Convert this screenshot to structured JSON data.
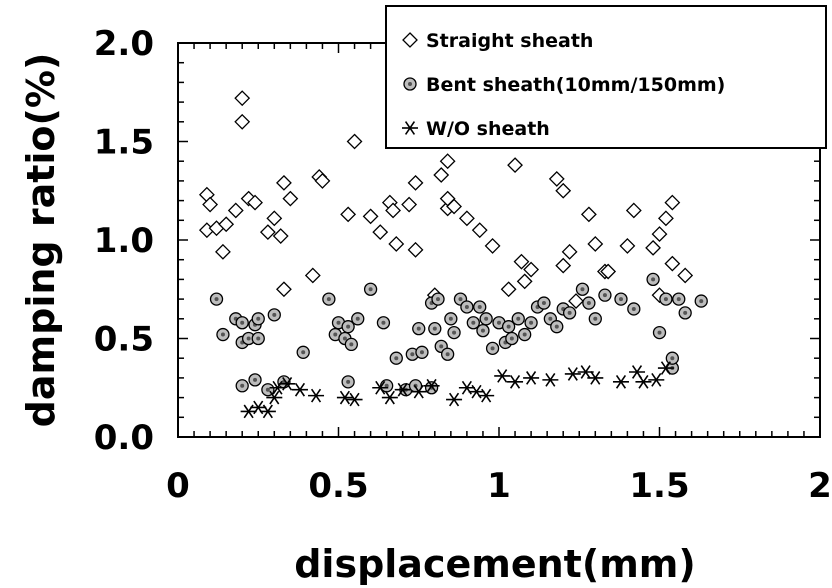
{
  "chart_data": {
    "type": "scatter",
    "xlabel": "displacement(mm)",
    "ylabel": "damping ratio(%)",
    "xlim": [
      0,
      2
    ],
    "ylim": [
      0,
      2
    ],
    "xticks": [
      "0",
      "0.5",
      "1",
      "1.5",
      "2"
    ],
    "yticks": [
      "0.0",
      "0.5",
      "1.0",
      "1.5",
      "2.0"
    ],
    "grid": false,
    "legend_position": "top-right",
    "series": [
      {
        "name": "Straight sheath",
        "marker": "diamond",
        "color": "#000000",
        "points": [
          [
            0.09,
            1.23
          ],
          [
            0.1,
            1.18
          ],
          [
            0.09,
            1.05
          ],
          [
            0.12,
            1.06
          ],
          [
            0.15,
            1.08
          ],
          [
            0.18,
            1.15
          ],
          [
            0.14,
            0.94
          ],
          [
            0.2,
            1.72
          ],
          [
            0.2,
            1.6
          ],
          [
            0.22,
            1.21
          ],
          [
            0.24,
            1.19
          ],
          [
            0.28,
            1.04
          ],
          [
            0.3,
            1.11
          ],
          [
            0.32,
            1.02
          ],
          [
            0.33,
            1.29
          ],
          [
            0.35,
            1.21
          ],
          [
            0.33,
            0.75
          ],
          [
            0.42,
            0.82
          ],
          [
            0.44,
            1.32
          ],
          [
            0.45,
            1.3
          ],
          [
            0.53,
            1.13
          ],
          [
            0.55,
            1.5
          ],
          [
            0.6,
            1.12
          ],
          [
            0.63,
            1.04
          ],
          [
            0.66,
            1.19
          ],
          [
            0.67,
            1.15
          ],
          [
            0.68,
            0.98
          ],
          [
            0.72,
            1.18
          ],
          [
            0.74,
            1.29
          ],
          [
            0.74,
            0.95
          ],
          [
            0.8,
            0.72
          ],
          [
            0.82,
            1.33
          ],
          [
            0.84,
            1.4
          ],
          [
            0.84,
            1.16
          ],
          [
            0.84,
            1.21
          ],
          [
            0.86,
            1.17
          ],
          [
            0.9,
            1.11
          ],
          [
            0.94,
            1.05
          ],
          [
            0.98,
            0.97
          ],
          [
            1.03,
            0.75
          ],
          [
            1.05,
            1.38
          ],
          [
            1.07,
            0.89
          ],
          [
            1.08,
            0.79
          ],
          [
            1.1,
            0.85
          ],
          [
            1.18,
            1.31
          ],
          [
            1.2,
            1.25
          ],
          [
            1.2,
            0.87
          ],
          [
            1.22,
            0.94
          ],
          [
            1.24,
            0.69
          ],
          [
            1.28,
            1.13
          ],
          [
            1.3,
            0.98
          ],
          [
            1.33,
            0.84
          ],
          [
            1.34,
            0.84
          ],
          [
            1.4,
            0.97
          ],
          [
            1.42,
            1.15
          ],
          [
            1.48,
            0.96
          ],
          [
            1.5,
            1.03
          ],
          [
            1.52,
            1.11
          ],
          [
            1.54,
            1.19
          ],
          [
            1.54,
            0.88
          ],
          [
            1.58,
            0.82
          ],
          [
            1.5,
            0.72
          ]
        ]
      },
      {
        "name": "Bent sheath(10mm/150mm)",
        "marker": "circle",
        "color": "#000000",
        "points": [
          [
            0.12,
            0.7
          ],
          [
            0.14,
            0.52
          ],
          [
            0.18,
            0.6
          ],
          [
            0.2,
            0.58
          ],
          [
            0.2,
            0.48
          ],
          [
            0.22,
            0.5
          ],
          [
            0.24,
            0.57
          ],
          [
            0.25,
            0.5
          ],
          [
            0.25,
            0.6
          ],
          [
            0.3,
            0.62
          ],
          [
            0.39,
            0.43
          ],
          [
            0.47,
            0.7
          ],
          [
            0.49,
            0.52
          ],
          [
            0.5,
            0.58
          ],
          [
            0.52,
            0.5
          ],
          [
            0.53,
            0.56
          ],
          [
            0.54,
            0.47
          ],
          [
            0.56,
            0.6
          ],
          [
            0.6,
            0.75
          ],
          [
            0.64,
            0.58
          ],
          [
            0.68,
            0.4
          ],
          [
            0.73,
            0.42
          ],
          [
            0.75,
            0.55
          ],
          [
            0.76,
            0.43
          ],
          [
            0.79,
            0.68
          ],
          [
            0.8,
            0.55
          ],
          [
            0.81,
            0.7
          ],
          [
            0.82,
            0.46
          ],
          [
            0.84,
            0.42
          ],
          [
            0.85,
            0.6
          ],
          [
            0.86,
            0.53
          ],
          [
            0.88,
            0.7
          ],
          [
            0.9,
            0.66
          ],
          [
            0.92,
            0.58
          ],
          [
            0.94,
            0.66
          ],
          [
            0.95,
            0.54
          ],
          [
            0.96,
            0.6
          ],
          [
            0.98,
            0.45
          ],
          [
            1.0,
            0.58
          ],
          [
            1.02,
            0.48
          ],
          [
            1.03,
            0.56
          ],
          [
            1.04,
            0.5
          ],
          [
            1.06,
            0.6
          ],
          [
            1.08,
            0.52
          ],
          [
            1.1,
            0.58
          ],
          [
            1.12,
            0.66
          ],
          [
            1.14,
            0.68
          ],
          [
            1.16,
            0.6
          ],
          [
            1.18,
            0.56
          ],
          [
            1.2,
            0.65
          ],
          [
            1.22,
            0.63
          ],
          [
            1.26,
            0.75
          ],
          [
            1.28,
            0.68
          ],
          [
            1.3,
            0.6
          ],
          [
            1.33,
            0.72
          ],
          [
            1.38,
            0.7
          ],
          [
            1.42,
            0.65
          ],
          [
            1.48,
            0.8
          ],
          [
            1.5,
            0.53
          ],
          [
            1.52,
            0.7
          ],
          [
            1.56,
            0.7
          ],
          [
            1.58,
            0.63
          ],
          [
            1.63,
            0.69
          ],
          [
            0.2,
            0.26
          ],
          [
            0.24,
            0.29
          ],
          [
            0.28,
            0.24
          ],
          [
            0.33,
            0.28
          ],
          [
            0.53,
            0.28
          ],
          [
            0.65,
            0.26
          ],
          [
            0.71,
            0.24
          ],
          [
            0.74,
            0.26
          ],
          [
            0.79,
            0.25
          ],
          [
            1.54,
            0.35
          ],
          [
            1.54,
            0.4
          ]
        ]
      },
      {
        "name": "W/O sheath",
        "marker": "asterisk",
        "color": "#000000",
        "points": [
          [
            0.22,
            0.13
          ],
          [
            0.25,
            0.15
          ],
          [
            0.28,
            0.13
          ],
          [
            0.3,
            0.2
          ],
          [
            0.31,
            0.25
          ],
          [
            0.34,
            0.27
          ],
          [
            0.38,
            0.24
          ],
          [
            0.43,
            0.21
          ],
          [
            0.52,
            0.2
          ],
          [
            0.55,
            0.19
          ],
          [
            0.63,
            0.25
          ],
          [
            0.66,
            0.2
          ],
          [
            0.7,
            0.24
          ],
          [
            0.75,
            0.23
          ],
          [
            0.79,
            0.26
          ],
          [
            0.86,
            0.19
          ],
          [
            0.9,
            0.25
          ],
          [
            0.93,
            0.23
          ],
          [
            0.96,
            0.21
          ],
          [
            1.01,
            0.31
          ],
          [
            1.05,
            0.28
          ],
          [
            1.1,
            0.3
          ],
          [
            1.16,
            0.29
          ],
          [
            1.23,
            0.32
          ],
          [
            1.27,
            0.33
          ],
          [
            1.3,
            0.3
          ],
          [
            1.38,
            0.28
          ],
          [
            1.43,
            0.33
          ],
          [
            1.45,
            0.28
          ],
          [
            1.49,
            0.29
          ],
          [
            1.52,
            0.35
          ]
        ]
      }
    ]
  }
}
